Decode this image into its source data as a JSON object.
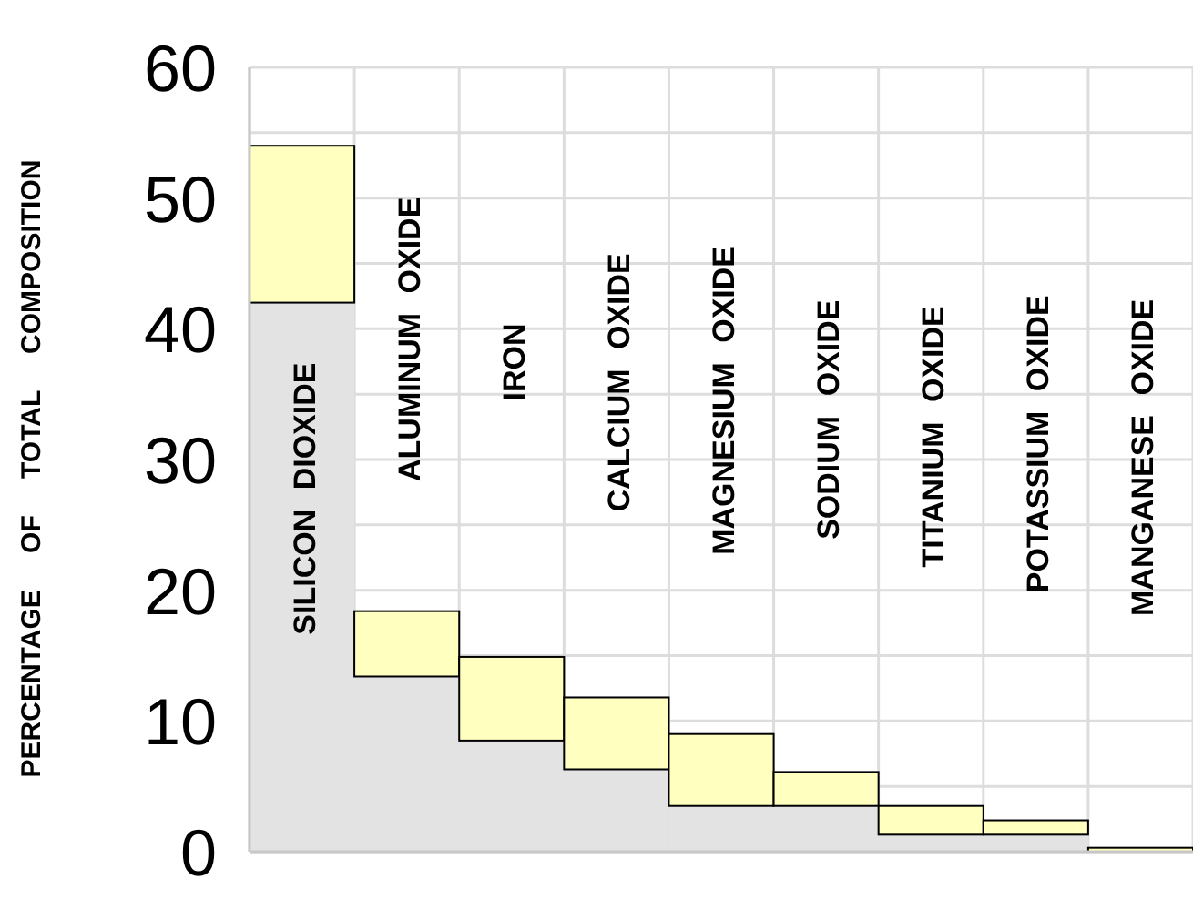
{
  "chart_data": {
    "type": "bar",
    "stacked": true,
    "ylabel": "PERCENTAGE OF TOTAL COMPOSITION",
    "categories": [
      "SILICON DIOXIDE",
      "ALUMINUM OXIDE",
      "IRON",
      "CALCIUM OXIDE",
      "MAGNESIUM OXIDE",
      "SODIUM OXIDE",
      "TITANIUM OXIDE",
      "POTASSIUM OXIDE",
      "MANGANESE OXIDE"
    ],
    "series": [
      {
        "color": "#e3e3e3",
        "values": [
          42,
          13.4,
          8.5,
          6.3,
          3.5,
          3.5,
          1.3,
          1.3,
          0
        ]
      },
      {
        "color": "#ffffc0",
        "values": [
          12,
          5,
          6.4,
          5.5,
          5.5,
          2.6,
          2.2,
          1.1,
          0.3
        ]
      }
    ],
    "ylim": [
      0,
      60
    ],
    "yticks": [
      0,
      {
        "value": 5,
        "label": null
      },
      10,
      {
        "value": 15,
        "label": null
      },
      20,
      {
        "value": 25,
        "label": null
      },
      30,
      {
        "value": 35,
        "label": null
      },
      40,
      {
        "value": 45,
        "label": null
      },
      50,
      {
        "value": 55,
        "label": null
      },
      60
    ],
    "grid": true
  }
}
